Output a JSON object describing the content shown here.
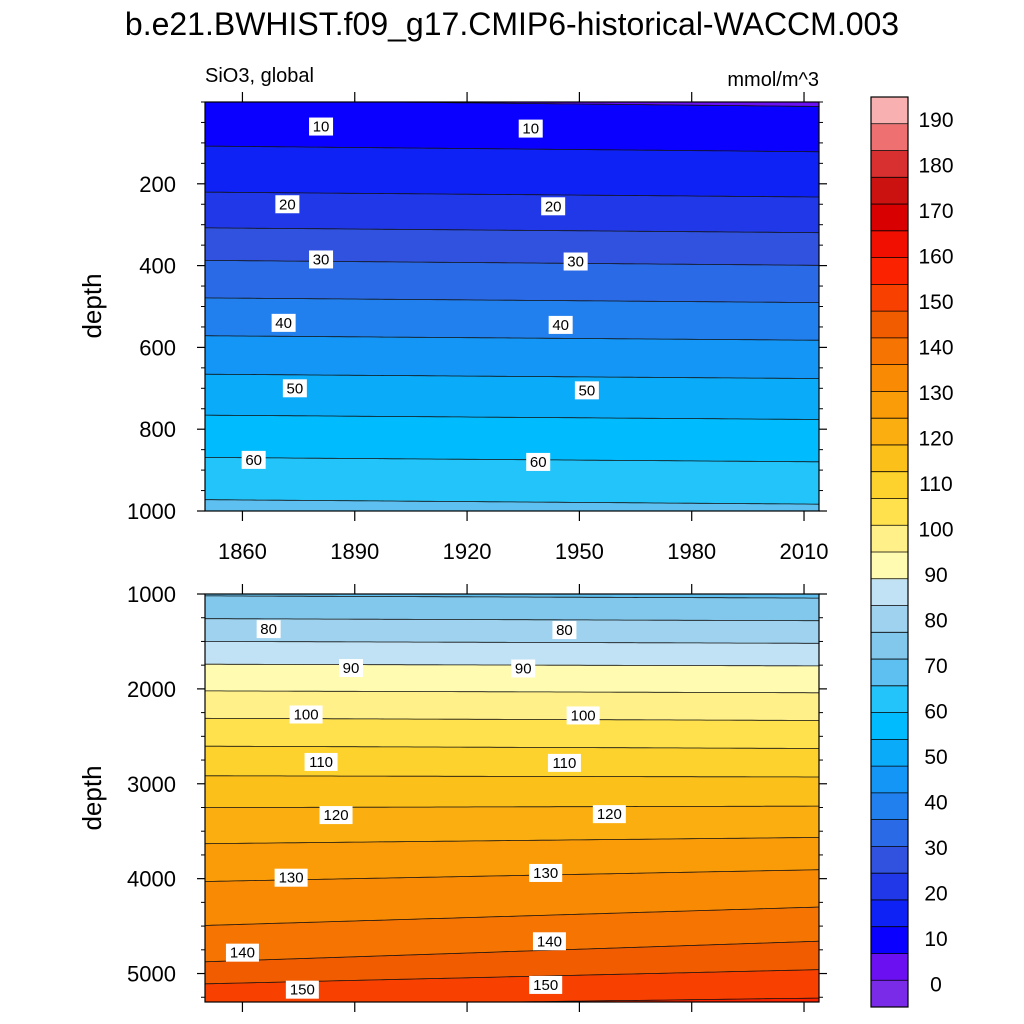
{
  "title": "b.e21.BWHIST.f09_g17.CMIP6-historical-WACCM.003",
  "chart_data": {
    "type": "contour",
    "variable_label": "SiO3, global",
    "units": "mmol/m^3",
    "ylabel": "depth",
    "x_ticks": [
      1860,
      1890,
      1920,
      1950,
      1980,
      2010
    ],
    "xlim": [
      1850,
      2014
    ],
    "grid": false,
    "colorbar": {
      "orientation": "vertical",
      "placement": "right",
      "levels": [
        0,
        10,
        20,
        30,
        40,
        50,
        60,
        70,
        80,
        90,
        100,
        110,
        120,
        130,
        140,
        150,
        160,
        170,
        180,
        190
      ],
      "tick_labels": [
        "0",
        "10",
        "20",
        "30",
        "40",
        "50",
        "60",
        "70",
        "80",
        "90",
        "100",
        "110",
        "120",
        "130",
        "140",
        "150",
        "160",
        "170",
        "180",
        "190"
      ],
      "colors": [
        "#7a2be8",
        "#6b10f0",
        "#0a00ff",
        "#0f22f5",
        "#2038e8",
        "#3052de",
        "#2b6ae6",
        "#2280ee",
        "#1396f6",
        "#0aacfa",
        "#00bcff",
        "#22c4fa",
        "#5ec0f0",
        "#82c8ec",
        "#9ed2ee",
        "#c0e2f4",
        "#fffbb0",
        "#fff08a",
        "#ffe14e",
        "#fdd22c",
        "#fcc01a",
        "#fbae10",
        "#fa9c08",
        "#f88a04",
        "#f57402",
        "#f25c00",
        "#f84000",
        "#fb2200",
        "#f00f00",
        "#d80000",
        "#cc1111",
        "#d83030",
        "#ee7070",
        "#f8b0b0"
      ]
    },
    "panels": [
      {
        "name": "upper",
        "ylim": [
          0,
          1000
        ],
        "y_reversed": true,
        "y_ticks": [
          200,
          400,
          600,
          800,
          1000
        ],
        "contours": [
          {
            "level": 10,
            "label": "10",
            "label_points": [
              [
                1881,
                60
              ],
              [
                1937,
                65
              ]
            ]
          },
          {
            "level": 20,
            "label": "20",
            "label_points": [
              [
                1872,
                250
              ],
              [
                1943,
                255
              ]
            ]
          },
          {
            "level": 30,
            "label": "30",
            "label_points": [
              [
                1881,
                385
              ],
              [
                1949,
                390
              ]
            ]
          },
          {
            "level": 40,
            "label": "40",
            "label_points": [
              [
                1871,
                540
              ],
              [
                1945,
                545
              ]
            ]
          },
          {
            "level": 50,
            "label": "50",
            "label_points": [
              [
                1874,
                700
              ],
              [
                1952,
                705
              ]
            ]
          },
          {
            "level": 60,
            "label": "60",
            "label_points": [
              [
                1863,
                875
              ],
              [
                1939,
                880
              ]
            ]
          }
        ]
      },
      {
        "name": "lower",
        "ylim": [
          1000,
          5300
        ],
        "y_reversed": true,
        "y_ticks": [
          1000,
          2000,
          3000,
          4000,
          5000
        ],
        "contours": [
          {
            "level": 80,
            "label": "80",
            "label_points": [
              [
                1867,
                1370
              ],
              [
                1946,
                1380
              ]
            ]
          },
          {
            "level": 90,
            "label": "90",
            "label_points": [
              [
                1889,
                1780
              ],
              [
                1935,
                1785
              ]
            ]
          },
          {
            "level": 100,
            "label": "100",
            "label_points": [
              [
                1877,
                2270
              ],
              [
                1951,
                2280
              ]
            ]
          },
          {
            "level": 110,
            "label": "110",
            "label_points": [
              [
                1881,
                2770
              ],
              [
                1946,
                2780
              ]
            ]
          },
          {
            "level": 120,
            "label": "120",
            "label_points": [
              [
                1885,
                3330
              ],
              [
                1958,
                3320
              ]
            ]
          },
          {
            "level": 130,
            "label": "130",
            "label_points": [
              [
                1873,
                3990
              ],
              [
                1941,
                3940
              ]
            ]
          },
          {
            "level": 140,
            "label": "140",
            "label_points": [
              [
                1860,
                4780
              ],
              [
                1942,
                4660
              ]
            ]
          },
          {
            "level": 150,
            "label": "150",
            "label_points": [
              [
                1876,
                5170
              ],
              [
                1941,
                5120
              ]
            ]
          }
        ]
      }
    ]
  }
}
